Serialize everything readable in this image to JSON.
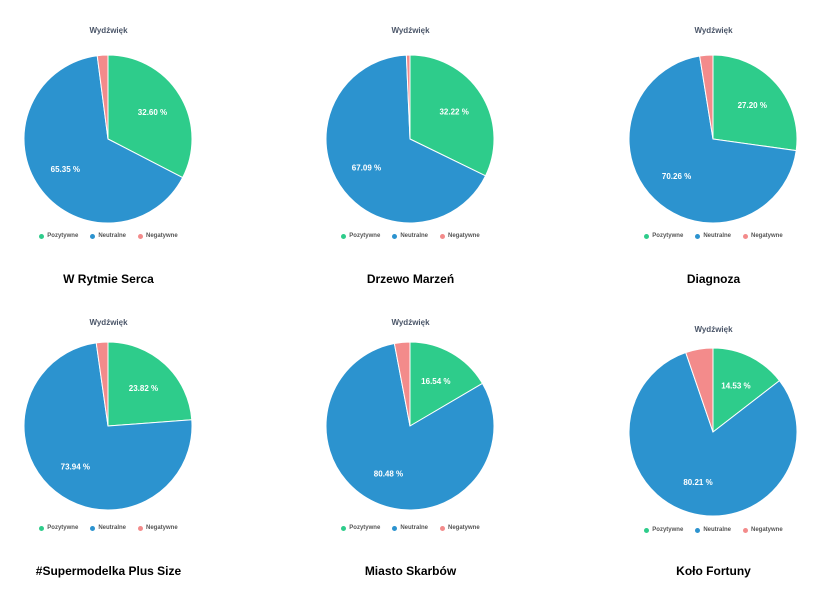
{
  "legend": {
    "labels": [
      "Pozytywne",
      "Neutralne",
      "Negatywne"
    ]
  },
  "colors": {
    "positive": "#2ecc8b",
    "neutral": "#2c93cf",
    "negative": "#f38b8b"
  },
  "chart_data": [
    {
      "type": "pie",
      "title": "Wydźwięk",
      "caption": "W Rytmie Serca",
      "slices": [
        {
          "label": "Pozytywne",
          "value": 32.6,
          "data_label": "32.60 %"
        },
        {
          "label": "Neutralne",
          "value": 65.35,
          "data_label": "65.35 %"
        },
        {
          "label": "Negatywne",
          "value": 2.05,
          "data_label": ""
        }
      ]
    },
    {
      "type": "pie",
      "title": "Wydźwięk",
      "caption": "Drzewo Marzeń",
      "slices": [
        {
          "label": "Pozytywne",
          "value": 32.22,
          "data_label": "32.22 %"
        },
        {
          "label": "Neutralne",
          "value": 67.09,
          "data_label": "67.09 %"
        },
        {
          "label": "Negatywne",
          "value": 0.69,
          "data_label": ""
        }
      ]
    },
    {
      "type": "pie",
      "title": "Wydźwięk",
      "caption": "Diagnoza",
      "slices": [
        {
          "label": "Pozytywne",
          "value": 27.2,
          "data_label": "27.20 %"
        },
        {
          "label": "Neutralne",
          "value": 70.26,
          "data_label": "70.26 %"
        },
        {
          "label": "Negatywne",
          "value": 2.54,
          "data_label": ""
        }
      ]
    },
    {
      "type": "pie",
      "title": "Wydźwięk",
      "caption": "#Supermodelka Plus Size",
      "slices": [
        {
          "label": "Pozytywne",
          "value": 23.82,
          "data_label": "23.82 %"
        },
        {
          "label": "Neutralne",
          "value": 73.94,
          "data_label": "73.94 %"
        },
        {
          "label": "Negatywne",
          "value": 2.24,
          "data_label": ""
        }
      ]
    },
    {
      "type": "pie",
      "title": "Wydźwięk",
      "caption": "Miasto Skarbów",
      "slices": [
        {
          "label": "Pozytywne",
          "value": 16.54,
          "data_label": "16.54 %"
        },
        {
          "label": "Neutralne",
          "value": 80.48,
          "data_label": "80.48 %"
        },
        {
          "label": "Negatywne",
          "value": 2.98,
          "data_label": ""
        }
      ]
    },
    {
      "type": "pie",
      "title": "Wydźwięk",
      "caption": "Koło Fortuny",
      "slices": [
        {
          "label": "Pozytywne",
          "value": 14.53,
          "data_label": "14.53 %"
        },
        {
          "label": "Neutralne",
          "value": 80.21,
          "data_label": "80.21 %"
        },
        {
          "label": "Negatywne",
          "value": 5.26,
          "data_label": ""
        }
      ]
    }
  ]
}
